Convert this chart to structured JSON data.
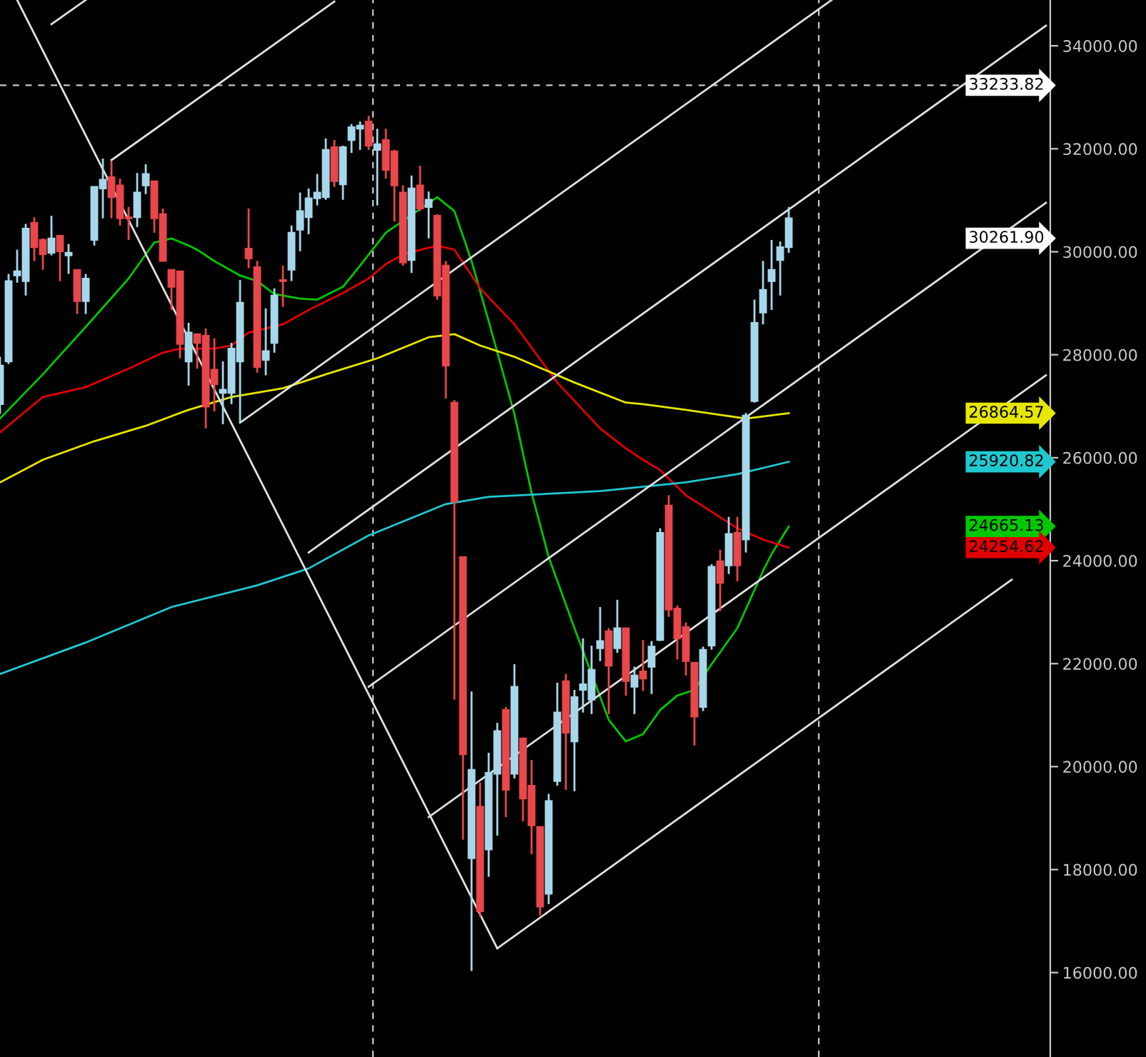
{
  "chart_data": {
    "type": "candlestick",
    "categories": [
      null,
      null,
      null,
      null,
      null,
      null,
      null,
      null,
      null,
      null,
      null,
      null,
      null,
      null,
      null,
      null,
      null,
      null,
      null,
      null,
      null,
      null,
      null,
      null,
      null,
      null,
      null,
      null,
      null,
      null,
      null,
      null,
      null,
      null,
      null,
      null,
      null,
      null,
      null,
      null,
      null,
      null,
      null,
      null,
      null,
      null,
      null,
      null,
      null,
      null,
      null,
      null,
      null,
      null,
      null,
      null,
      null,
      null,
      null,
      null,
      null,
      null,
      null,
      null,
      null,
      null,
      null,
      null,
      null,
      null,
      null,
      null,
      null,
      null,
      null,
      null,
      null,
      null,
      null,
      null,
      null,
      null,
      null,
      null,
      null,
      null,
      null,
      null,
      null,
      null,
      null,
      null,
      null,
      null,
      null,
      null,
      null,
      null,
      null,
      null,
      null,
      null,
      null,
      null,
      null,
      null,
      null,
      null,
      null,
      null,
      null,
      null,
      null,
      null,
      null,
      null,
      null,
      null,
      null,
      null,
      null,
      null,
      null
    ],
    "ohlc": [
      [
        27040,
        27960,
        26850,
        27790
      ],
      [
        27870,
        29570,
        27820,
        29430
      ],
      [
        29540,
        30040,
        29400,
        29620
      ],
      [
        29430,
        30540,
        29150,
        30450
      ],
      [
        30560,
        30670,
        29820,
        30090
      ],
      [
        30230,
        30260,
        29650,
        29950
      ],
      [
        29980,
        30700,
        29930,
        30260
      ],
      [
        30310,
        30310,
        29430,
        30010
      ],
      [
        29930,
        30150,
        29570,
        29980
      ],
      [
        29650,
        29650,
        28790,
        29040
      ],
      [
        29040,
        29570,
        28790,
        29480
      ],
      [
        30230,
        31260,
        30120,
        31260
      ],
      [
        31230,
        31810,
        30650,
        31400
      ],
      [
        31450,
        31760,
        30650,
        31060
      ],
      [
        31290,
        31420,
        30510,
        30650
      ],
      [
        30670,
        30870,
        30230,
        30650
      ],
      [
        30670,
        31530,
        30480,
        31150
      ],
      [
        31290,
        31700,
        31120,
        31510
      ],
      [
        31370,
        31370,
        30370,
        30650
      ],
      [
        30730,
        30840,
        29820,
        29820
      ],
      [
        29650,
        29650,
        28870,
        29320
      ],
      [
        29620,
        29620,
        27930,
        28210
      ],
      [
        27870,
        28620,
        27400,
        28430
      ],
      [
        28400,
        28400,
        27730,
        28230
      ],
      [
        28370,
        28510,
        26570,
        26990
      ],
      [
        27710,
        28320,
        26900,
        27430
      ],
      [
        27260,
        27870,
        26650,
        27320
      ],
      [
        27260,
        28230,
        27040,
        28120
      ],
      [
        27870,
        29450,
        26680,
        29010
      ],
      [
        30060,
        30840,
        29680,
        29870
      ],
      [
        29700,
        29820,
        27650,
        27760
      ],
      [
        27900,
        28900,
        27600,
        28070
      ],
      [
        28230,
        29290,
        28040,
        29150
      ],
      [
        29450,
        29730,
        28930,
        29430
      ],
      [
        29650,
        30510,
        29430,
        30370
      ],
      [
        30430,
        31150,
        30010,
        30790
      ],
      [
        30670,
        31230,
        30340,
        31040
      ],
      [
        31040,
        31510,
        30900,
        31150
      ],
      [
        31060,
        32200,
        31010,
        31980
      ],
      [
        32030,
        32170,
        31260,
        31370
      ],
      [
        31310,
        32060,
        31010,
        32030
      ],
      [
        32170,
        32480,
        31920,
        32420
      ],
      [
        32390,
        32530,
        31980,
        32450
      ],
      [
        32530,
        32640,
        31980,
        32060
      ],
      [
        31980,
        32390,
        30900,
        32090
      ],
      [
        32170,
        32390,
        31420,
        31590
      ],
      [
        31950,
        31980,
        30590,
        31290
      ],
      [
        31150,
        31290,
        29730,
        29790
      ],
      [
        29840,
        31480,
        29590,
        31230
      ],
      [
        31290,
        31670,
        30790,
        30840
      ],
      [
        30870,
        31170,
        30260,
        31010
      ],
      [
        30700,
        30730,
        29070,
        29150
      ],
      [
        29730,
        29820,
        27150,
        27790
      ],
      [
        27070,
        27120,
        21300,
        25150
      ],
      [
        24070,
        24070,
        18580,
        20240
      ],
      [
        18220,
        21460,
        16030,
        19940
      ],
      [
        19220,
        19690,
        17080,
        17190
      ],
      [
        18390,
        20270,
        17860,
        19880
      ],
      [
        19860,
        20850,
        18660,
        20690
      ],
      [
        21100,
        21160,
        19020,
        19550
      ],
      [
        19860,
        21990,
        19770,
        21550
      ],
      [
        20550,
        20550,
        18940,
        19380
      ],
      [
        19630,
        20130,
        18300,
        18860
      ],
      [
        18830,
        18830,
        17110,
        17280
      ],
      [
        17530,
        19470,
        17330,
        19330
      ],
      [
        19720,
        21630,
        19630,
        21050
      ],
      [
        21660,
        21800,
        19550,
        20660
      ],
      [
        20490,
        21490,
        19520,
        21350
      ],
      [
        21490,
        22490,
        21050,
        21600
      ],
      [
        21300,
        22350,
        21020,
        21880
      ],
      [
        22300,
        23100,
        22050,
        22440
      ],
      [
        22630,
        22690,
        21020,
        21960
      ],
      [
        22300,
        23240,
        22210,
        22690
      ],
      [
        22690,
        22690,
        21380,
        21660
      ],
      [
        21550,
        21940,
        21020,
        21770
      ],
      [
        21850,
        22460,
        21470,
        21710
      ],
      [
        21940,
        22440,
        21410,
        22330
      ],
      [
        22460,
        24630,
        22440,
        24540
      ],
      [
        25070,
        25270,
        22910,
        23050
      ],
      [
        23070,
        23130,
        22080,
        22490
      ],
      [
        22710,
        22800,
        21770,
        22050
      ],
      [
        22020,
        22020,
        20410,
        20970
      ],
      [
        21160,
        22330,
        21080,
        22270
      ],
      [
        22350,
        23930,
        22270,
        23880
      ],
      [
        23990,
        24210,
        23020,
        23570
      ],
      [
        23910,
        24850,
        23740,
        24520
      ],
      [
        24540,
        24850,
        23600,
        23910
      ],
      [
        24410,
        26870,
        24160,
        26820
      ],
      [
        27100,
        29070,
        27070,
        28620
      ],
      [
        28820,
        29820,
        28590,
        29260
      ],
      [
        29430,
        30230,
        28870,
        29650
      ],
      [
        29840,
        30200,
        29150,
        30090
      ],
      [
        30090,
        30870,
        29980,
        30650
      ],
      null,
      null,
      null,
      null,
      null,
      null,
      null,
      null,
      null,
      null,
      null,
      null,
      null,
      null,
      null,
      null,
      null,
      null,
      null,
      null,
      null,
      null,
      null,
      null,
      null,
      null,
      null,
      null,
      null,
      null
    ],
    "colors": [
      "#a7d7ea",
      "#a7d7ea",
      "#a7d7ea",
      "#a7d7ea",
      "#e8474c",
      "#e8474c",
      "#a7d7ea",
      "#e8474c",
      "#a7d7ea",
      "#e8474c",
      "#a7d7ea",
      "#a7d7ea",
      "#a7d7ea",
      "#e8474c",
      "#e8474c",
      "#e8474c",
      "#a7d7ea",
      "#a7d7ea",
      "#e8474c",
      "#e8474c",
      "#e8474c",
      "#e8474c",
      "#a7d7ea",
      "#e8474c",
      "#e8474c",
      "#e8474c",
      "#a7d7ea",
      "#a7d7ea",
      "#a7d7ea",
      "#e8474c",
      "#e8474c",
      "#a7d7ea",
      "#a7d7ea",
      "#e8474c",
      "#a7d7ea",
      "#a7d7ea",
      "#a7d7ea",
      "#a7d7ea",
      "#a7d7ea",
      "#e8474c",
      "#a7d7ea",
      "#a7d7ea",
      "#a7d7ea",
      "#e8474c",
      "#a7d7ea",
      "#e8474c",
      "#e8474c",
      "#e8474c",
      "#a7d7ea",
      "#e8474c",
      "#a7d7ea",
      "#e8474c",
      "#e8474c",
      "#e8474c",
      "#e8474c",
      "#a7d7ea",
      "#e8474c",
      "#a7d7ea",
      "#a7d7ea",
      "#e8474c",
      "#a7d7ea",
      "#e8474c",
      "#e8474c",
      "#e8474c",
      "#a7d7ea",
      "#a7d7ea",
      "#e8474c",
      "#a7d7ea",
      "#a7d7ea",
      "#a7d7ea",
      "#a7d7ea",
      "#e8474c",
      "#a7d7ea",
      "#e8474c",
      "#a7d7ea",
      "#e8474c",
      "#a7d7ea",
      "#a7d7ea",
      "#e8474c",
      "#e8474c",
      "#e8474c",
      "#e8474c",
      "#a7d7ea",
      "#a7d7ea",
      "#e8474c",
      "#a7d7ea",
      "#e8474c",
      "#a7d7ea",
      "#a7d7ea",
      "#a7d7ea",
      "#a7d7ea",
      "#a7d7ea",
      "#a7d7ea",
      null,
      null,
      null,
      null,
      null,
      null,
      null,
      null,
      null,
      null,
      null,
      null,
      null,
      null,
      null,
      null,
      null,
      null,
      null,
      null,
      null,
      null,
      null,
      null,
      null,
      null,
      null,
      null,
      null,
      null
    ],
    "series": [
      {
        "type": "line",
        "color": "#00c800",
        "values": [
          26760,
          null,
          null,
          null,
          null,
          27620,
          null,
          null,
          null,
          null,
          28540,
          null,
          null,
          null,
          null,
          29480,
          null,
          null,
          30180,
          null,
          30260,
          null,
          30120,
          30040,
          null,
          29820,
          null,
          null,
          29540,
          null,
          29430,
          null,
          29180,
          null,
          null,
          29090,
          null,
          29070,
          null,
          null,
          29320,
          null,
          29730,
          null,
          null,
          30370,
          null,
          null,
          null,
          null,
          null,
          31060,
          null,
          30790,
          null,
          29820,
          null,
          28650,
          null,
          null,
          26850,
          null,
          25320,
          null,
          24070,
          null,
          null,
          22690,
          null,
          null,
          null,
          20910,
          null,
          20490,
          null,
          20630,
          null,
          21100,
          null,
          21380,
          null,
          21490,
          null,
          21990,
          null,
          null,
          22690,
          null,
          null,
          23800,
          24130,
          null,
          24665.13,
          null,
          null,
          null,
          null,
          null,
          null,
          null,
          null,
          null,
          null,
          null,
          null,
          null,
          null,
          null,
          null,
          null,
          null,
          null,
          null,
          null,
          null,
          null,
          null,
          null,
          null,
          null,
          null,
          null,
          null
        ]
      },
      {
        "type": "line",
        "color": "#e00000",
        "values": [
          26490,
          null,
          null,
          null,
          null,
          27180,
          null,
          null,
          null,
          null,
          27370,
          null,
          null,
          null,
          null,
          27730,
          null,
          null,
          null,
          28040,
          null,
          28120,
          null,
          null,
          null,
          28120,
          null,
          28180,
          null,
          28430,
          null,
          null,
          null,
          28590,
          null,
          null,
          28870,
          null,
          null,
          null,
          29200,
          null,
          null,
          29480,
          null,
          29760,
          null,
          29950,
          null,
          null,
          null,
          30120,
          null,
          30040,
          null,
          null,
          29290,
          null,
          null,
          null,
          28590,
          null,
          null,
          null,
          null,
          27460,
          null,
          null,
          null,
          null,
          26570,
          null,
          null,
          26180,
          null,
          25960,
          null,
          25760,
          null,
          null,
          25270,
          null,
          null,
          null,
          null,
          null,
          24630,
          null,
          null,
          24410,
          null,
          null,
          24254.62,
          null,
          null,
          null,
          null,
          null,
          null,
          null,
          null,
          null,
          null,
          null,
          null,
          null,
          null,
          null,
          null,
          null,
          null,
          null,
          null,
          null,
          null,
          null,
          null,
          null,
          null,
          null,
          null,
          null,
          null
        ]
      },
      {
        "type": "line",
        "color": "#e6e600",
        "values": [
          25520,
          null,
          null,
          null,
          null,
          25960,
          null,
          null,
          null,
          null,
          null,
          26320,
          null,
          null,
          null,
          null,
          null,
          26620,
          null,
          null,
          null,
          null,
          26930,
          null,
          null,
          null,
          null,
          27180,
          null,
          null,
          null,
          null,
          null,
          27350,
          null,
          null,
          null,
          null,
          27620,
          null,
          null,
          null,
          null,
          null,
          27930,
          null,
          null,
          null,
          null,
          null,
          28340,
          null,
          null,
          28400,
          null,
          null,
          28180,
          null,
          null,
          null,
          27960,
          null,
          null,
          null,
          null,
          null,
          null,
          27460,
          null,
          null,
          null,
          null,
          null,
          27070,
          null,
          27040,
          null,
          null,
          null,
          null,
          26930,
          null,
          null,
          null,
          null,
          null,
          null,
          26760,
          null,
          null,
          null,
          null,
          26864.57,
          null,
          null,
          null,
          null,
          null,
          null,
          null,
          null,
          null,
          null,
          null,
          null,
          null,
          null,
          null,
          null,
          null,
          null,
          null,
          null,
          null,
          null,
          null,
          null,
          null,
          null,
          null,
          null,
          null,
          null
        ]
      },
      {
        "type": "line",
        "color": "#20c8d0",
        "values": [
          21800,
          null,
          null,
          null,
          null,
          null,
          null,
          null,
          null,
          null,
          22410,
          null,
          null,
          null,
          null,
          null,
          null,
          null,
          null,
          null,
          23100,
          null,
          null,
          null,
          null,
          null,
          null,
          null,
          null,
          null,
          23520,
          null,
          null,
          null,
          null,
          null,
          23850,
          null,
          null,
          null,
          null,
          null,
          null,
          24490,
          null,
          null,
          null,
          null,
          null,
          null,
          null,
          null,
          25100,
          null,
          null,
          null,
          null,
          25240,
          null,
          null,
          null,
          null,
          null,
          null,
          null,
          null,
          null,
          null,
          null,
          null,
          25350,
          null,
          null,
          null,
          null,
          null,
          null,
          null,
          null,
          null,
          25520,
          null,
          null,
          null,
          null,
          null,
          25680,
          null,
          null,
          null,
          null,
          null,
          25920.82,
          null,
          null,
          null,
          null,
          null,
          null,
          null,
          null,
          null,
          null,
          null,
          null,
          null,
          null,
          null,
          null,
          null,
          null,
          null,
          null,
          null,
          null,
          null,
          null,
          null,
          null,
          null,
          null,
          null,
          null
        ]
      },
      {
        "type": "line",
        "color": "#e0e0e0",
        "values": [
          null,
          null,
          34890,
          null,
          null,
          null,
          null,
          null,
          null,
          null,
          null,
          null,
          null,
          null,
          null,
          null,
          null,
          null,
          null,
          null,
          null,
          null,
          null,
          null,
          null,
          null,
          null,
          null,
          null,
          null,
          null,
          null,
          null,
          null,
          null,
          null,
          null,
          null,
          null,
          null,
          null,
          null,
          null,
          null,
          null,
          null,
          null,
          null,
          null,
          null,
          null,
          null,
          null,
          null,
          null,
          null,
          null,
          null,
          16470,
          null,
          null,
          null,
          null,
          null,
          null,
          null,
          null,
          null,
          null,
          null,
          null,
          null,
          null,
          null,
          null,
          null,
          null,
          null,
          null,
          null,
          null,
          null,
          null,
          null,
          null,
          null,
          null,
          null,
          null,
          null,
          null,
          null,
          null,
          null,
          null,
          null,
          null,
          null,
          null,
          null,
          null,
          null,
          null,
          null,
          null,
          null,
          null,
          null,
          null,
          null,
          null,
          null,
          null,
          null,
          null,
          null,
          null,
          null,
          null,
          null,
          null,
          null,
          null
        ]
      },
      {
        "type": "line",
        "color": "#e0e0e0",
        "values": [
          null,
          null,
          null,
          null,
          null,
          null,
          null,
          null,
          null,
          null,
          null,
          null,
          null,
          null,
          null,
          null,
          null,
          null,
          null,
          null,
          null,
          null,
          null,
          null,
          null,
          null,
          null,
          null,
          null,
          null,
          null,
          null,
          null,
          null,
          null,
          null,
          null,
          null,
          null,
          null,
          null,
          null,
          null,
          null,
          null,
          null,
          null,
          null,
          null,
          null,
          null,
          null,
          null,
          null,
          null,
          null,
          null,
          null,
          16470,
          null,
          null,
          null,
          null,
          null,
          null,
          null,
          null,
          null,
          null,
          null,
          null,
          null,
          null,
          null,
          null,
          null,
          null,
          null,
          null,
          null,
          null,
          null,
          null,
          null,
          null,
          null,
          null,
          null,
          null,
          null,
          null,
          null,
          null,
          null,
          null,
          null,
          null,
          null,
          null,
          null,
          null,
          null,
          null,
          null,
          null,
          null,
          null,
          null,
          null,
          null,
          null,
          null,
          null,
          null,
          null,
          null,
          null,
          null,
          23630,
          null,
          null,
          null,
          null
        ]
      },
      {
        "type": "line",
        "color": "#e0e0e0",
        "values": [
          null,
          null,
          null,
          null,
          null,
          null,
          null,
          null,
          null,
          null,
          null,
          null,
          null,
          null,
          null,
          null,
          null,
          null,
          null,
          null,
          null,
          null,
          null,
          null,
          null,
          null,
          null,
          null,
          null,
          null,
          null,
          null,
          null,
          null,
          null,
          null,
          null,
          null,
          null,
          null,
          null,
          null,
          null,
          null,
          null,
          null,
          null,
          null,
          null,
          null,
          19020,
          null,
          null,
          null,
          null,
          null,
          null,
          null,
          null,
          null,
          null,
          null,
          null,
          null,
          null,
          null,
          null,
          null,
          null,
          null,
          null,
          null,
          null,
          null,
          null,
          null,
          null,
          null,
          null,
          null,
          null,
          null,
          null,
          null,
          null,
          null,
          null,
          null,
          null,
          null,
          null,
          null,
          null,
          null,
          null,
          null,
          null,
          null,
          null,
          null,
          null,
          null,
          null,
          null,
          null,
          null,
          null,
          null,
          null,
          null,
          null,
          null,
          null,
          null,
          null,
          null,
          null,
          null,
          null,
          null,
          null,
          null,
          27600
        ]
      },
      {
        "type": "line",
        "color": "#e0e0e0",
        "values": [
          null,
          null,
          null,
          null,
          null,
          null,
          null,
          null,
          null,
          null,
          null,
          null,
          null,
          null,
          null,
          null,
          null,
          null,
          null,
          null,
          null,
          null,
          null,
          null,
          null,
          null,
          null,
          null,
          null,
          null,
          null,
          null,
          null,
          null,
          null,
          null,
          null,
          null,
          null,
          null,
          null,
          null,
          null,
          21550,
          null,
          null,
          null,
          null,
          null,
          null,
          null,
          null,
          null,
          null,
          null,
          null,
          null,
          null,
          null,
          null,
          null,
          null,
          null,
          null,
          null,
          null,
          null,
          null,
          null,
          null,
          null,
          null,
          null,
          null,
          null,
          null,
          null,
          null,
          null,
          null,
          null,
          null,
          null,
          null,
          null,
          null,
          null,
          null,
          null,
          null,
          null,
          null,
          null,
          null,
          null,
          null,
          null,
          null,
          null,
          null,
          null,
          null,
          null,
          null,
          null,
          null,
          null,
          null,
          null,
          null,
          null,
          null,
          null,
          null,
          null,
          null,
          null,
          null,
          null,
          null,
          null,
          null,
          30950
        ]
      },
      {
        "type": "line",
        "color": "#e0e0e0",
        "values": [
          null,
          null,
          null,
          null,
          null,
          null,
          null,
          null,
          null,
          null,
          null,
          null,
          null,
          null,
          null,
          null,
          null,
          null,
          null,
          null,
          null,
          null,
          null,
          null,
          null,
          null,
          null,
          null,
          null,
          null,
          null,
          null,
          null,
          null,
          null,
          null,
          24160,
          null,
          null,
          null,
          null,
          null,
          null,
          null,
          null,
          null,
          null,
          null,
          null,
          null,
          null,
          null,
          null,
          null,
          null,
          null,
          null,
          null,
          null,
          null,
          null,
          null,
          null,
          null,
          null,
          null,
          null,
          null,
          null,
          null,
          null,
          null,
          null,
          null,
          null,
          null,
          null,
          null,
          null,
          null,
          null,
          null,
          null,
          null,
          null,
          null,
          null,
          null,
          null,
          null,
          null,
          null,
          null,
          null,
          null,
          null,
          null,
          null,
          null,
          null,
          null,
          null,
          null,
          null,
          null,
          null,
          null,
          null,
          null,
          null,
          null,
          null,
          null,
          null,
          null,
          null,
          null,
          null,
          null,
          null,
          null,
          null,
          34390
        ]
      },
      {
        "type": "line",
        "color": "#e0e0e0",
        "values": [
          null,
          null,
          null,
          null,
          null,
          null,
          null,
          null,
          null,
          null,
          null,
          null,
          null,
          null,
          null,
          null,
          null,
          null,
          null,
          null,
          null,
          null,
          null,
          null,
          null,
          null,
          null,
          null,
          26680,
          null,
          null,
          null,
          null,
          null,
          null,
          null,
          null,
          null,
          null,
          null,
          null,
          null,
          null,
          null,
          null,
          null,
          null,
          null,
          null,
          null,
          null,
          null,
          null,
          null,
          null,
          null,
          null,
          null,
          null,
          null,
          null,
          null,
          null,
          null,
          null,
          null,
          null,
          null,
          null,
          null,
          null,
          null,
          null,
          null,
          null,
          null,
          null,
          null,
          null,
          null,
          null,
          null,
          null,
          null,
          null,
          null,
          null,
          null,
          null,
          null,
          null,
          null,
          null,
          null,
          null,
          null,
          null,
          34890,
          null,
          null,
          null,
          null,
          null,
          null,
          null,
          null,
          null,
          null,
          null,
          null,
          null,
          null,
          null,
          null,
          null,
          null,
          null,
          null,
          null,
          null,
          null,
          null,
          null
        ]
      },
      {
        "type": "line",
        "color": "#e0e0e0",
        "values": [
          null,
          null,
          null,
          null,
          null,
          null,
          null,
          null,
          null,
          null,
          null,
          null,
          null,
          31780,
          null,
          null,
          null,
          null,
          null,
          null,
          null,
          null,
          null,
          null,
          null,
          null,
          null,
          null,
          null,
          null,
          null,
          null,
          null,
          null,
          null,
          null,
          null,
          null,
          null,
          34860,
          null,
          null,
          null,
          null,
          null,
          null,
          null,
          null,
          null,
          null,
          null,
          null,
          null,
          null,
          null,
          null,
          null,
          null,
          null,
          null,
          null,
          null,
          null,
          null,
          null,
          null,
          null,
          null,
          null,
          null,
          null,
          null,
          null,
          null,
          null,
          null,
          null,
          null,
          null,
          null,
          null,
          null,
          null,
          null,
          null,
          null,
          null,
          null,
          null,
          null,
          null,
          null,
          null,
          null,
          null,
          null,
          null,
          null,
          null,
          null,
          null,
          null,
          null,
          null,
          null,
          null,
          null,
          null,
          null,
          null,
          null,
          null,
          null,
          null,
          null,
          null,
          null,
          null,
          null,
          null,
          null,
          null,
          null
        ]
      },
      {
        "type": "line",
        "color": "#e0e0e0",
        "values": [
          null,
          null,
          null,
          null,
          null,
          null,
          34420,
          null,
          null,
          null,
          34890,
          null,
          null,
          null,
          null,
          null,
          null,
          null,
          null,
          null,
          null,
          null,
          null,
          null,
          null,
          null,
          null,
          null,
          null,
          null,
          null,
          null,
          null,
          null,
          null,
          null,
          null,
          null,
          null,
          null,
          null,
          null,
          null,
          null,
          null,
          null,
          null,
          null,
          null,
          null,
          null,
          null,
          null,
          null,
          null,
          null,
          null,
          null,
          null,
          null,
          null,
          null,
          null,
          null,
          null,
          null,
          null,
          null,
          null,
          null,
          null,
          null,
          null,
          null,
          null,
          null,
          null,
          null,
          null,
          null,
          null,
          null,
          null,
          null,
          null,
          null,
          null,
          null,
          null,
          null,
          null,
          null,
          null,
          null,
          null,
          null,
          null,
          null,
          null,
          null,
          null,
          null,
          null,
          null,
          null,
          null,
          null,
          null,
          null,
          null,
          null,
          null,
          null,
          null,
          null,
          null,
          null,
          null,
          null,
          null,
          null,
          null,
          null
        ]
      }
    ],
    "ylim": [
      14360,
      34890
    ],
    "yticks": [
      {
        "value": 16000,
        "label": "16000.00"
      },
      {
        "value": 18000,
        "label": "18000.00"
      },
      {
        "value": 20000,
        "label": "20000.00"
      },
      {
        "value": 22000,
        "label": "22000.00"
      },
      {
        "value": 24000,
        "label": "24000.00"
      },
      {
        "value": 26000,
        "label": "26000.00"
      },
      {
        "value": 28000,
        "label": "28000.00"
      },
      {
        "value": 30000,
        "label": "30000.00"
      },
      {
        "value": 32000,
        "label": "32000.00"
      },
      {
        "value": 34000,
        "label": "34000.00"
      }
    ],
    "tick_labels": "y",
    "ref_lines": [
      {
        "axis": "y",
        "value": 33233.82,
        "label": "33233.82",
        "color": "#c8c8c8",
        "line_style": "dashed"
      }
    ],
    "annotations": [
      "30261.90",
      "26864.57",
      "25920.82",
      "24665.13",
      "24254.62"
    ]
  }
}
